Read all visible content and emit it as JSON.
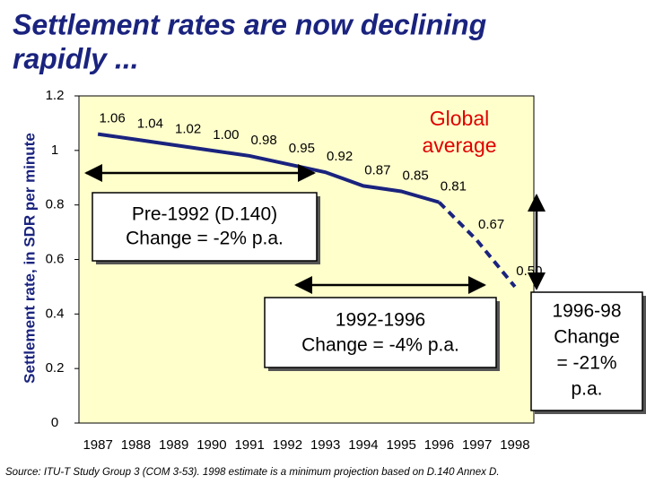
{
  "chart_data": {
    "type": "line",
    "title": [
      "Settlement rates are now declining",
      "rapidly ..."
    ],
    "y_label": "Settlement rate, in SDR per minute",
    "categories": [
      "1987",
      "1988",
      "1989",
      "1990",
      "1991",
      "1992",
      "1993",
      "1994",
      "1995",
      "1996",
      "1997",
      "1998"
    ],
    "series": [
      {
        "name": "Global average",
        "color": "#1a237e",
        "values": [
          1.06,
          1.04,
          1.02,
          1.0,
          0.98,
          0.95,
          0.92,
          0.87,
          0.85,
          0.81,
          0.67,
          0.5
        ],
        "value_labels": [
          "1.06",
          "1.04",
          "1.02",
          "1.00",
          "0.98",
          "0.95",
          "0.92",
          "0.87",
          "0.85",
          "0.81",
          "0.67",
          "0.50"
        ]
      }
    ],
    "ylim": [
      0,
      1.2
    ],
    "yticks": [
      0,
      0.2,
      0.4,
      0.6,
      0.8,
      1,
      1.2
    ],
    "plot_background": "#ffffcc",
    "annotations": [
      {
        "lines": [
          "Pre-1992 (D.140)",
          "Change = -2% p.a."
        ]
      },
      {
        "lines": [
          "1992-1996",
          "Change = -4% p.a."
        ]
      },
      {
        "lines": [
          "1996-98",
          "Change",
          "= -21%",
          "p.a."
        ]
      }
    ],
    "source": "Source:  ITU-T Study Group 3 (COM 3-53). 1998 estimate is a minimum projection based on D.140 Annex D."
  }
}
